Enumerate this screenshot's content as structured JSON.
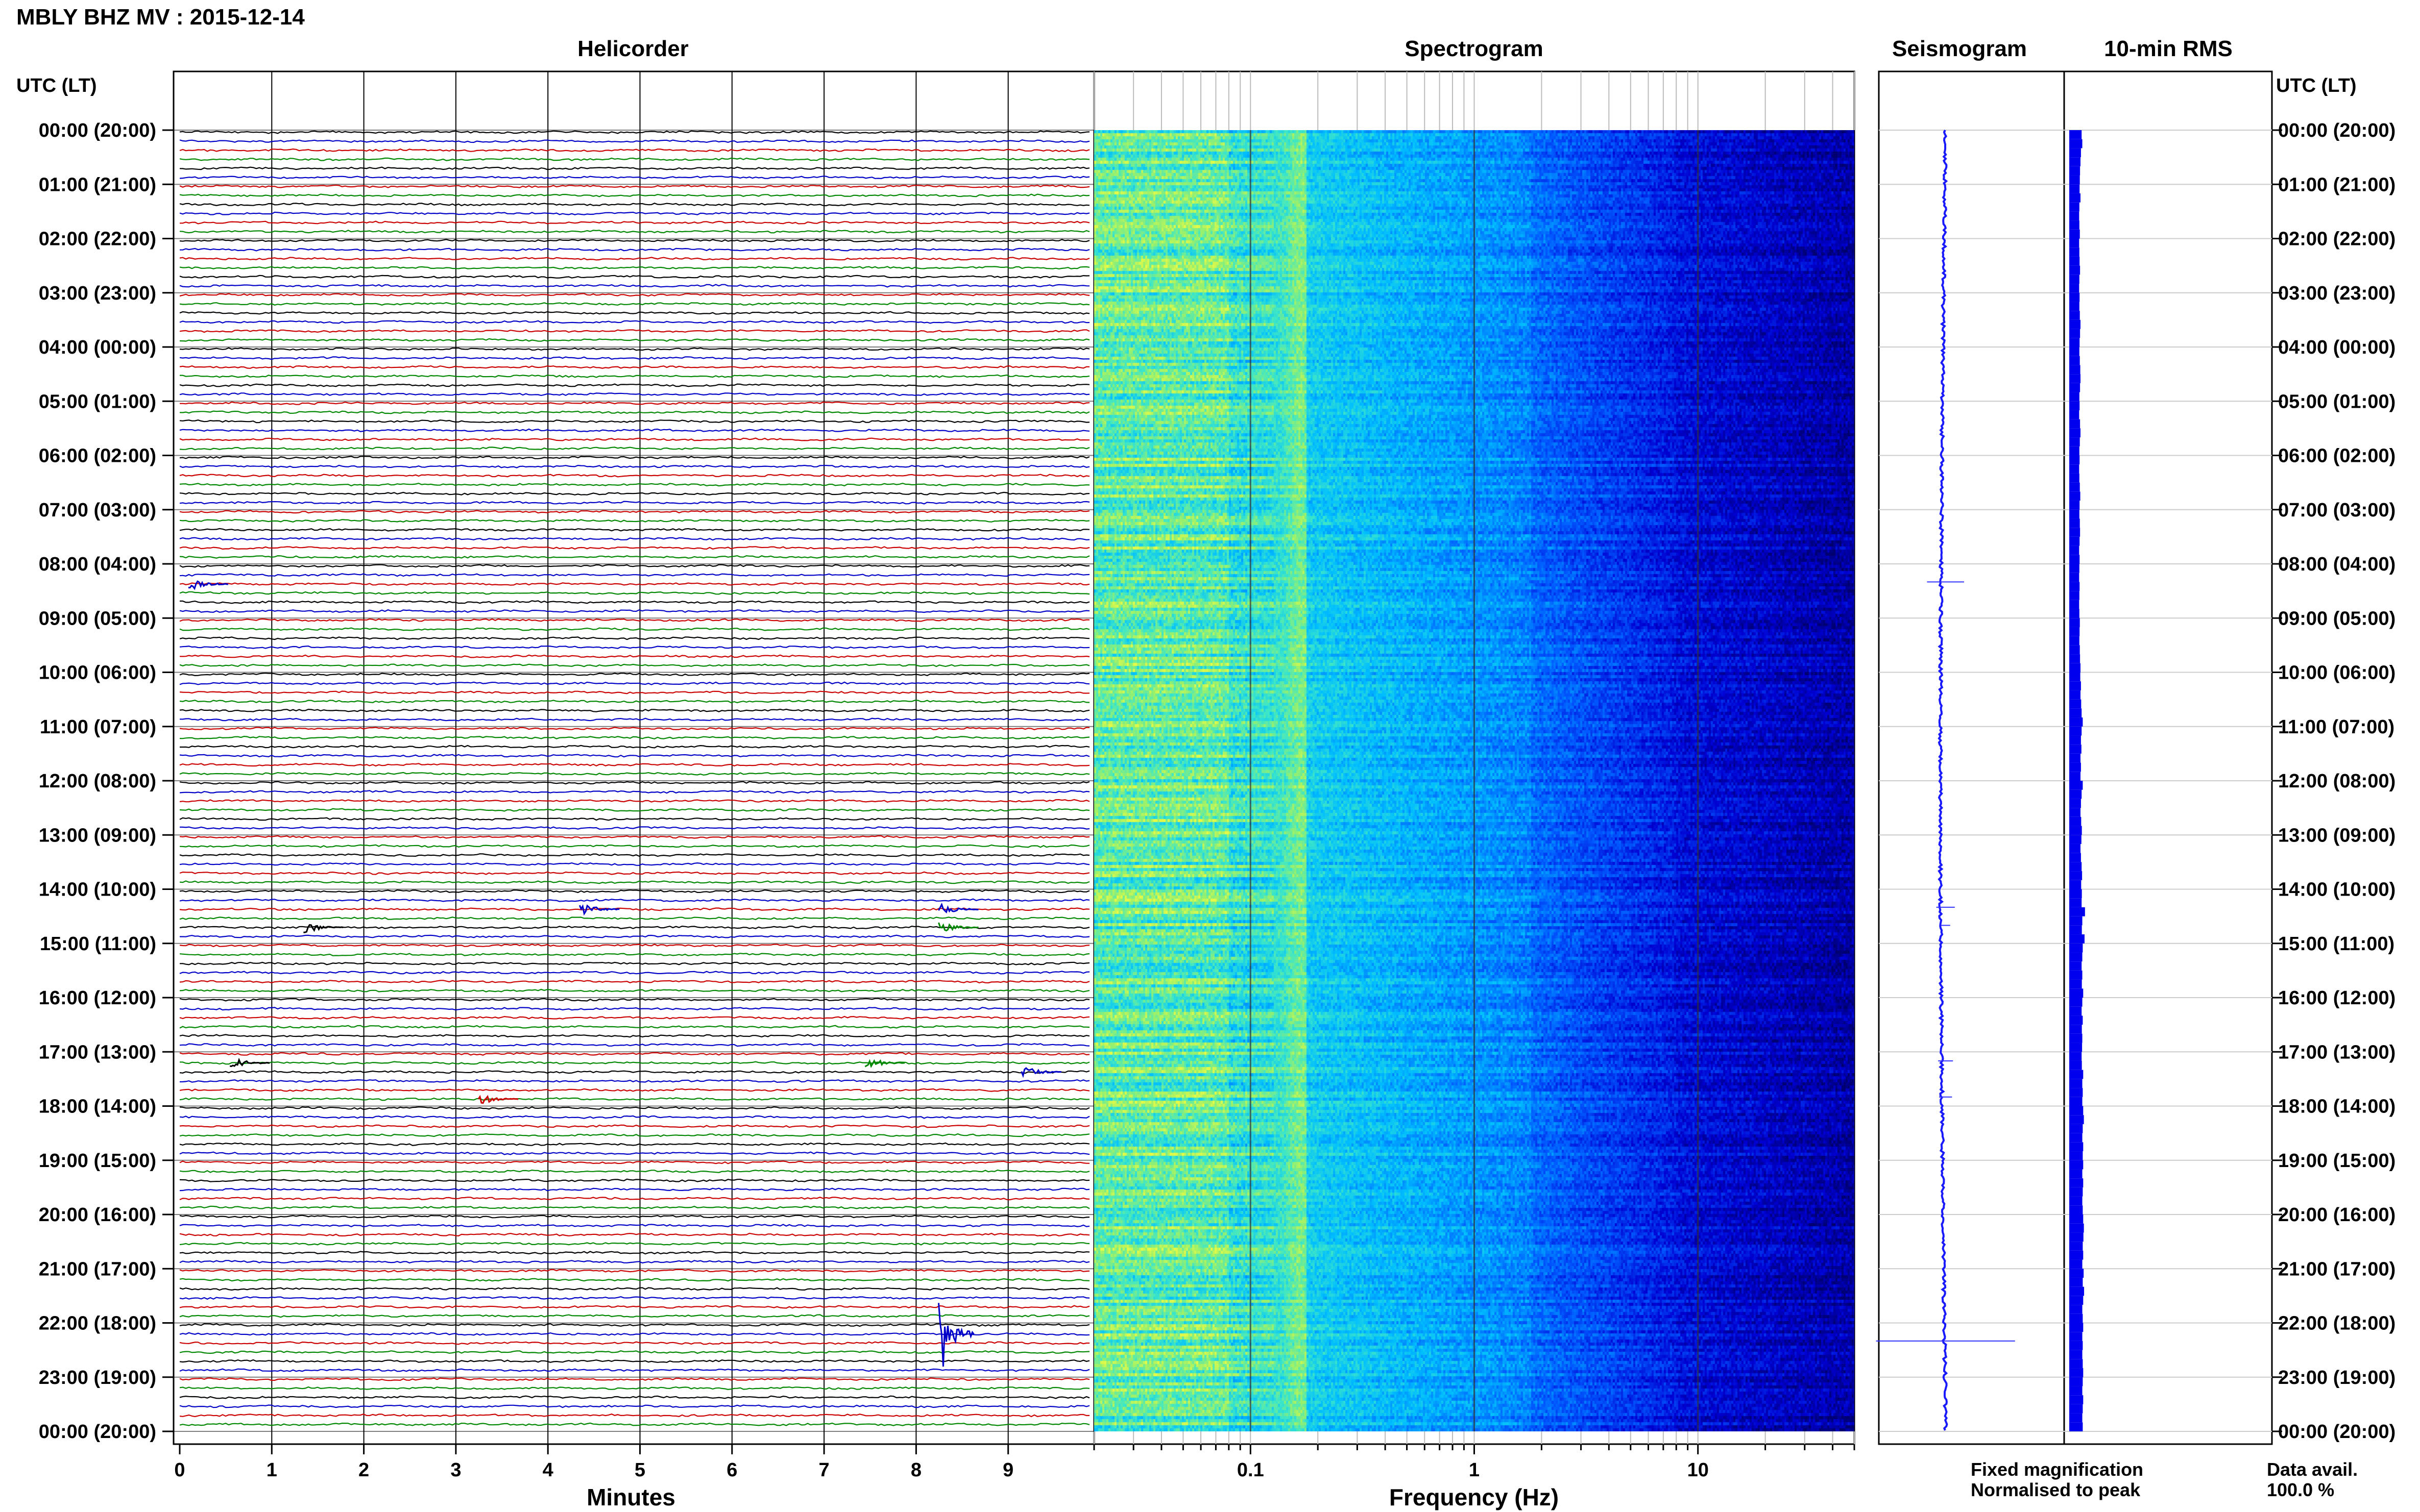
{
  "header": {
    "station_title": "MBLY BHZ MV : 2015-12-14",
    "panel_helicorder": "Helicorder",
    "panel_spectrogram": "Spectrogram",
    "panel_seismogram": "Seismogram",
    "panel_rms": "10-min RMS",
    "left_axis_title": "UTC (LT)",
    "right_axis_title": "UTC (LT)"
  },
  "footer": {
    "x_label_helicorder": "Minutes",
    "x_label_spectrogram": "Frequency (Hz)",
    "legend_fixed": "Fixed magnification",
    "legend_normalised": "Normalised to peak",
    "data_avail_label": "Data avail.",
    "data_avail_value": "100.0 %",
    "legend_fixed_color": "#0000ff",
    "legend_normalised_color": "#ff0000"
  },
  "chart_data": {
    "type": "heatmap",
    "title": "MBLY BHZ MV : 2015-12-14",
    "time_labels": [
      "00:00 (20:00)",
      "01:00 (21:00)",
      "02:00 (22:00)",
      "03:00 (23:00)",
      "04:00 (00:00)",
      "05:00 (01:00)",
      "06:00 (02:00)",
      "07:00 (03:00)",
      "08:00 (04:00)",
      "09:00 (05:00)",
      "10:00 (06:00)",
      "11:00 (07:00)",
      "12:00 (08:00)",
      "13:00 (09:00)",
      "14:00 (10:00)",
      "15:00 (11:00)",
      "16:00 (12:00)",
      "17:00 (13:00)",
      "18:00 (14:00)",
      "19:00 (15:00)",
      "20:00 (16:00)",
      "21:00 (17:00)",
      "22:00 (18:00)",
      "23:00 (19:00)",
      "00:00 (20:00)"
    ],
    "helicorder": {
      "xlabel": "Minutes",
      "xlim": [
        0,
        10
      ],
      "x_ticks": [
        "0",
        "1",
        "2",
        "3",
        "4",
        "5",
        "6",
        "7",
        "8",
        "9"
      ],
      "trace_colors": [
        "#000000",
        "#0000c8",
        "#cc0000",
        "#008800"
      ],
      "events": [
        {
          "time": "08:20",
          "minute": 0.15,
          "color": "#0000c8"
        },
        {
          "time": "14:20",
          "minute": 4.4,
          "color": "#0000c8"
        },
        {
          "time": "14:20",
          "minute": 8.3,
          "color": "#0000c8"
        },
        {
          "time": "14:40",
          "minute": 1.4,
          "color": "#000000"
        },
        {
          "time": "14:40",
          "minute": 8.3,
          "color": "#008800"
        },
        {
          "time": "17:10",
          "minute": 0.6,
          "color": "#000000"
        },
        {
          "time": "17:10",
          "minute": 7.5,
          "color": "#008800"
        },
        {
          "time": "17:20",
          "minute": 9.2,
          "color": "#0000c8"
        },
        {
          "time": "17:50",
          "minute": 3.3,
          "color": "#cc0000"
        },
        {
          "time": "22:10",
          "minute": 8.3,
          "color": "#0000c8"
        }
      ]
    },
    "spectrogram": {
      "xlabel": "Frequency (Hz)",
      "x_scale": "log",
      "xlim": [
        0.02,
        50
      ],
      "x_ticks": [
        "0.1",
        "1",
        "10"
      ]
    },
    "seismogram": {
      "spikes": [
        {
          "time": "08:20",
          "amplitude": 0.2
        },
        {
          "time": "14:20",
          "amplitude": 0.1
        },
        {
          "time": "14:40",
          "amplitude": 0.05
        },
        {
          "time": "17:10",
          "amplitude": 0.08
        },
        {
          "time": "17:50",
          "amplitude": 0.07
        },
        {
          "time": "22:20",
          "amplitude": 0.75
        }
      ]
    },
    "rms_10min": {
      "color": "#0000ee",
      "values": [
        0.55,
        0.58,
        0.52,
        0.5,
        0.48,
        0.47,
        0.46,
        0.5,
        0.45,
        0.44,
        0.45,
        0.47,
        0.44,
        0.45,
        0.46,
        0.48,
        0.45,
        0.44,
        0.46,
        0.45,
        0.47,
        0.5,
        0.48,
        0.46,
        0.45,
        0.47,
        0.49,
        0.5,
        0.48,
        0.45,
        0.46,
        0.44,
        0.48,
        0.5,
        0.47,
        0.45,
        0.46,
        0.44,
        0.45,
        0.47,
        0.49,
        0.46,
        0.45,
        0.47,
        0.48,
        0.46,
        0.44,
        0.46,
        0.45,
        0.44,
        0.46,
        0.45,
        0.44,
        0.45,
        0.47,
        0.46,
        0.45,
        0.47,
        0.48,
        0.5,
        0.49,
        0.52,
        0.5,
        0.53,
        0.55,
        0.6,
        0.55,
        0.52,
        0.54,
        0.5,
        0.52,
        0.5,
        0.6,
        0.55,
        0.52,
        0.5,
        0.53,
        0.56,
        0.54,
        0.5,
        0.52,
        0.55,
        0.57,
        0.53,
        0.56,
        0.55,
        0.7,
        0.58,
        0.56,
        0.68,
        0.6,
        0.58,
        0.55,
        0.58,
        0.56,
        0.62,
        0.58,
        0.55,
        0.6,
        0.56,
        0.58,
        0.57,
        0.55,
        0.56,
        0.62,
        0.58,
        0.6,
        0.58,
        0.62,
        0.65,
        0.6,
        0.58,
        0.62,
        0.6,
        0.62,
        0.58,
        0.62,
        0.6,
        0.58,
        0.6,
        0.62,
        0.65,
        0.63,
        0.6,
        0.62,
        0.58,
        0.64,
        0.6,
        0.66,
        0.62,
        0.58,
        0.6,
        0.62,
        0.58,
        0.6,
        0.58,
        0.6,
        0.62,
        0.6,
        0.58,
        0.62,
        0.6,
        0.58,
        0.6
      ]
    }
  }
}
